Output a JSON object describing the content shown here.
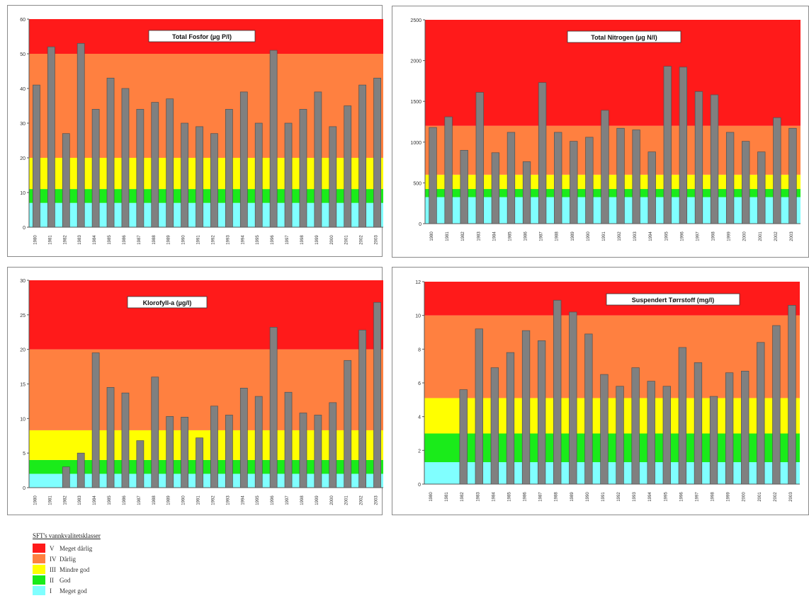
{
  "class_colors": {
    "V": "#ff1a1a",
    "IV": "#ff8040",
    "III": "#ffff00",
    "II": "#1aeb1a",
    "I": "#80ffff"
  },
  "bar_color": "#808080",
  "legend": {
    "title": "SFT's vannkvalitetsklasser",
    "items": [
      {
        "roman": "V",
        "label": "Meget dårlig",
        "color": "#ff1a1a"
      },
      {
        "roman": "IV",
        "label": "Dårlig",
        "color": "#ff8040"
      },
      {
        "roman": "III",
        "label": "Mindre god",
        "color": "#ffff00"
      },
      {
        "roman": "II",
        "label": "God",
        "color": "#1aeb1a"
      },
      {
        "roman": "I",
        "label": "Meget god",
        "color": "#80ffff"
      }
    ]
  },
  "chart_data": [
    {
      "type": "bar",
      "title": "Total Fosfor (µg P/l)",
      "categories": [
        "1980",
        "1981",
        "1982",
        "1983",
        "1984",
        "1985",
        "1986",
        "1987",
        "1988",
        "1989",
        "1990",
        "1991",
        "1992",
        "1993",
        "1994",
        "1995",
        "1996",
        "1997",
        "1998",
        "1999",
        "2000",
        "2001",
        "2002",
        "2003"
      ],
      "values": [
        41,
        52,
        27,
        53,
        34,
        43,
        40,
        34,
        36,
        37,
        30,
        29,
        27,
        34,
        39,
        30,
        51,
        30,
        34,
        39,
        29,
        35,
        41,
        43
      ],
      "ylim": [
        0,
        60
      ],
      "yticks": [
        "0",
        "10",
        "20",
        "30",
        "40",
        "50",
        "60"
      ],
      "classes": [
        {
          "class": "I",
          "from": 0,
          "to": 7
        },
        {
          "class": "II",
          "from": 7,
          "to": 11
        },
        {
          "class": "III",
          "from": 11,
          "to": 20
        },
        {
          "class": "IV",
          "from": 20,
          "to": 50
        },
        {
          "class": "V",
          "from": 50,
          "to": 60
        }
      ],
      "grid": false,
      "legend": "none"
    },
    {
      "type": "bar",
      "title": "Total Nitrogen (µg N/l)",
      "categories": [
        "1980",
        "1981",
        "1982",
        "1983",
        "1984",
        "1985",
        "1986",
        "1987",
        "1988",
        "1989",
        "1990",
        "1991",
        "1992",
        "1993",
        "1994",
        "1995",
        "1996",
        "1997",
        "1998",
        "1999",
        "2000",
        "2001",
        "2002",
        "2003"
      ],
      "values": [
        1180,
        1310,
        900,
        1610,
        870,
        1120,
        760,
        1730,
        1120,
        1010,
        1060,
        1390,
        1170,
        1150,
        880,
        1930,
        1920,
        1620,
        1580,
        1120,
        1010,
        880,
        1300,
        1170
      ],
      "ylim": [
        0,
        2500
      ],
      "yticks": [
        "0",
        "500",
        "1000",
        "1500",
        "2000",
        "2500"
      ],
      "classes": [
        {
          "class": "I",
          "from": 0,
          "to": 325
        },
        {
          "class": "II",
          "from": 325,
          "to": 425
        },
        {
          "class": "III",
          "from": 425,
          "to": 600
        },
        {
          "class": "IV",
          "from": 600,
          "to": 1200
        },
        {
          "class": "V",
          "from": 1200,
          "to": 2500
        }
      ],
      "grid": false,
      "legend": "none"
    },
    {
      "type": "bar",
      "title": "Klorofyll-a (µg/l)",
      "categories": [
        "1980",
        "1981",
        "1982",
        "1983",
        "1984",
        "1985",
        "1986",
        "1987",
        "1988",
        "1989",
        "1990",
        "1991",
        "1992",
        "1993",
        "1994",
        "1995",
        "1996",
        "1997",
        "1998",
        "1999",
        "2000",
        "2001",
        "2002",
        "2003"
      ],
      "values": [
        0,
        0,
        3,
        5,
        19.5,
        14.5,
        13.7,
        6.8,
        16,
        10.3,
        10.2,
        7.2,
        11.8,
        10.5,
        14.4,
        13.2,
        23.2,
        13.8,
        10.8,
        10.5,
        12.3,
        18.4,
        22.8,
        26.8
      ],
      "ylim": [
        0,
        30
      ],
      "yticks": [
        "0",
        "5",
        "10",
        "15",
        "20",
        "25",
        "30"
      ],
      "classes": [
        {
          "class": "I",
          "from": 0,
          "to": 2
        },
        {
          "class": "II",
          "from": 2,
          "to": 4
        },
        {
          "class": "III",
          "from": 4,
          "to": 8.3
        },
        {
          "class": "IV",
          "from": 8.3,
          "to": 20
        },
        {
          "class": "V",
          "from": 20,
          "to": 30
        }
      ],
      "grid": false,
      "legend": "none"
    },
    {
      "type": "bar",
      "title": "Suspendert Tørrstoff (mg/l)",
      "categories": [
        "1980",
        "1981",
        "1982",
        "1983",
        "1984",
        "1985",
        "1986",
        "1987",
        "1988",
        "1989",
        "1990",
        "1991",
        "1992",
        "1993",
        "1994",
        "1995",
        "1996",
        "1997",
        "1998",
        "1999",
        "2000",
        "2001",
        "2002",
        "2003"
      ],
      "values": [
        0,
        0,
        5.6,
        9.2,
        6.9,
        7.8,
        9.1,
        8.5,
        10.9,
        10.2,
        8.9,
        6.5,
        5.8,
        6.9,
        6.1,
        5.8,
        8.1,
        7.2,
        5.2,
        6.6,
        6.7,
        8.4,
        9.4,
        10.6
      ],
      "ylim": [
        0,
        12
      ],
      "yticks": [
        "0",
        "2",
        "4",
        "6",
        "8",
        "10",
        "12"
      ],
      "classes": [
        {
          "class": "I",
          "from": 0,
          "to": 1.3
        },
        {
          "class": "II",
          "from": 1.3,
          "to": 3
        },
        {
          "class": "III",
          "from": 3,
          "to": 5.1
        },
        {
          "class": "IV",
          "from": 5.1,
          "to": 10
        },
        {
          "class": "V",
          "from": 10,
          "to": 12
        }
      ],
      "grid": false,
      "legend": "none"
    }
  ]
}
